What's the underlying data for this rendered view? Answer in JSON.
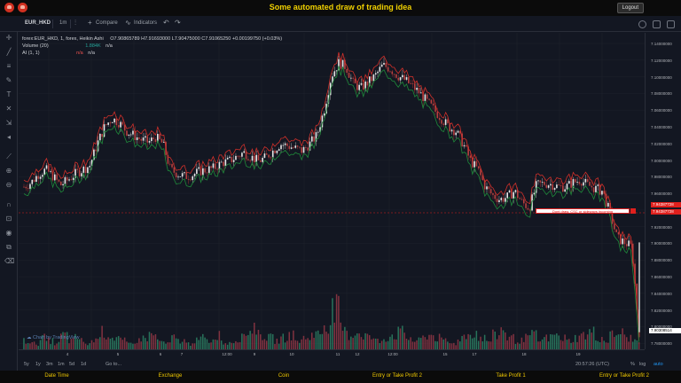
{
  "header": {
    "title": "Some automated draw of trading idea",
    "logout_label": "Logout"
  },
  "toolbar": {
    "symbol": "EUR_HKD",
    "interval": "1m",
    "compare_label": "Compare",
    "indicators_label": "Indicators"
  },
  "legend": {
    "main": "forex:EUR_HKD, 1, forex, Heikin Ashi",
    "ohlc": "O7.90865789 H7.91693000 L7.90475000 C7.91065250 +0.00199750 (+0.03%)",
    "volume_label": "Volume (20)",
    "volume_value": "1.884K",
    "volume_na": "n/a",
    "ai_label": "AI (1, 1)",
    "ai_na1": "n/a",
    "ai_na2": "n/a"
  },
  "price_axis": {
    "ticks": [
      "7.14000000",
      "7.12000000",
      "7.10000000",
      "7.08000000",
      "7.06000000",
      "7.04000000",
      "7.02000000",
      "7.00000000",
      "7.98000000",
      "7.96000000",
      "7.94000000",
      "7.92000000",
      "7.90000000",
      "7.88000000",
      "7.86000000",
      "7.84000000",
      "7.82000000",
      "7.80000000",
      "7.78000000"
    ],
    "red_tag_1": "7.94387728",
    "red_tag_2": "7.94387728",
    "last_tag": "7.90308514"
  },
  "time_axis": {
    "labels": [
      "4",
      "5",
      "6",
      "7",
      "12:00",
      "9",
      "10",
      "11",
      "12",
      "12:00",
      "15",
      "17",
      "18",
      "19"
    ]
  },
  "annotation": {
    "text": "Dont draw, CSC or sideways incoming"
  },
  "watermark": "Chart by TradingView",
  "range_bar": {
    "ranges": [
      "5y",
      "1y",
      "3m",
      "1m",
      "5d",
      "1d",
      "Go to..."
    ],
    "clock": "20:57:26 (UTC)",
    "pct": "%",
    "log": "log",
    "auto": "auto"
  },
  "footer": {
    "items": [
      "Date Time",
      "Exchange",
      "Coin",
      "Entry or Take Profit 2",
      "Take Profit 1",
      "Entry or Take Profit 2"
    ]
  },
  "colors": {
    "up": "#26a69a",
    "down": "#ef5350",
    "accent": "#f0d000"
  },
  "chart_data": {
    "type": "candlestick",
    "title": "forex:EUR_HKD, 1, forex, Heikin Ashi",
    "price_series": [
      7.97,
      7.975,
      7.985,
      7.99,
      7.982,
      7.972,
      7.978,
      7.985,
      7.99,
      7.995,
      8.02,
      8.04,
      8.05,
      8.045,
      8.035,
      8.03,
      8.025,
      8.022,
      8.028,
      8.02,
      7.99,
      7.985,
      7.982,
      7.984,
      7.988,
      7.99,
      7.992,
      7.998,
      8.0,
      8.005,
      8.01,
      8.005,
      8.0,
      8.004,
      8.012,
      8.02,
      8.018,
      8.015,
      8.012,
      8.02,
      8.03,
      8.06,
      8.1,
      8.115,
      8.11,
      8.09,
      8.085,
      8.092,
      8.1,
      8.112,
      8.108,
      8.1,
      8.095,
      8.088,
      8.08,
      8.07,
      8.06,
      8.05,
      8.04,
      8.035,
      8.02,
      8.0,
      7.99,
      7.97,
      7.96,
      7.955,
      7.958,
      7.965,
      7.952,
      7.945,
      7.972,
      7.974,
      7.973,
      7.97,
      7.97,
      7.975,
      7.978,
      7.972,
      7.968,
      7.965,
      7.94,
      7.91,
      7.905,
      7.9,
      7.8
    ],
    "volume_series": [
      3,
      2,
      4,
      3,
      2,
      5,
      3,
      4,
      2,
      3,
      6,
      5,
      4,
      3,
      2,
      3,
      4,
      5,
      3,
      2,
      4,
      3,
      2,
      3,
      4,
      3,
      5,
      2,
      3,
      4,
      6,
      8,
      5,
      4,
      3,
      4,
      5,
      3,
      4,
      5,
      6,
      9,
      14,
      7,
      5,
      6,
      5,
      4,
      3,
      4,
      5,
      6,
      4,
      3,
      4,
      5,
      4,
      3,
      2,
      4,
      5,
      6,
      4,
      3,
      5,
      7,
      4,
      3,
      4,
      5,
      3,
      4,
      5,
      4,
      3,
      4,
      5,
      6,
      4,
      3,
      5,
      6,
      4,
      3,
      4
    ],
    "ylim": [
      7.78,
      8.15
    ]
  }
}
